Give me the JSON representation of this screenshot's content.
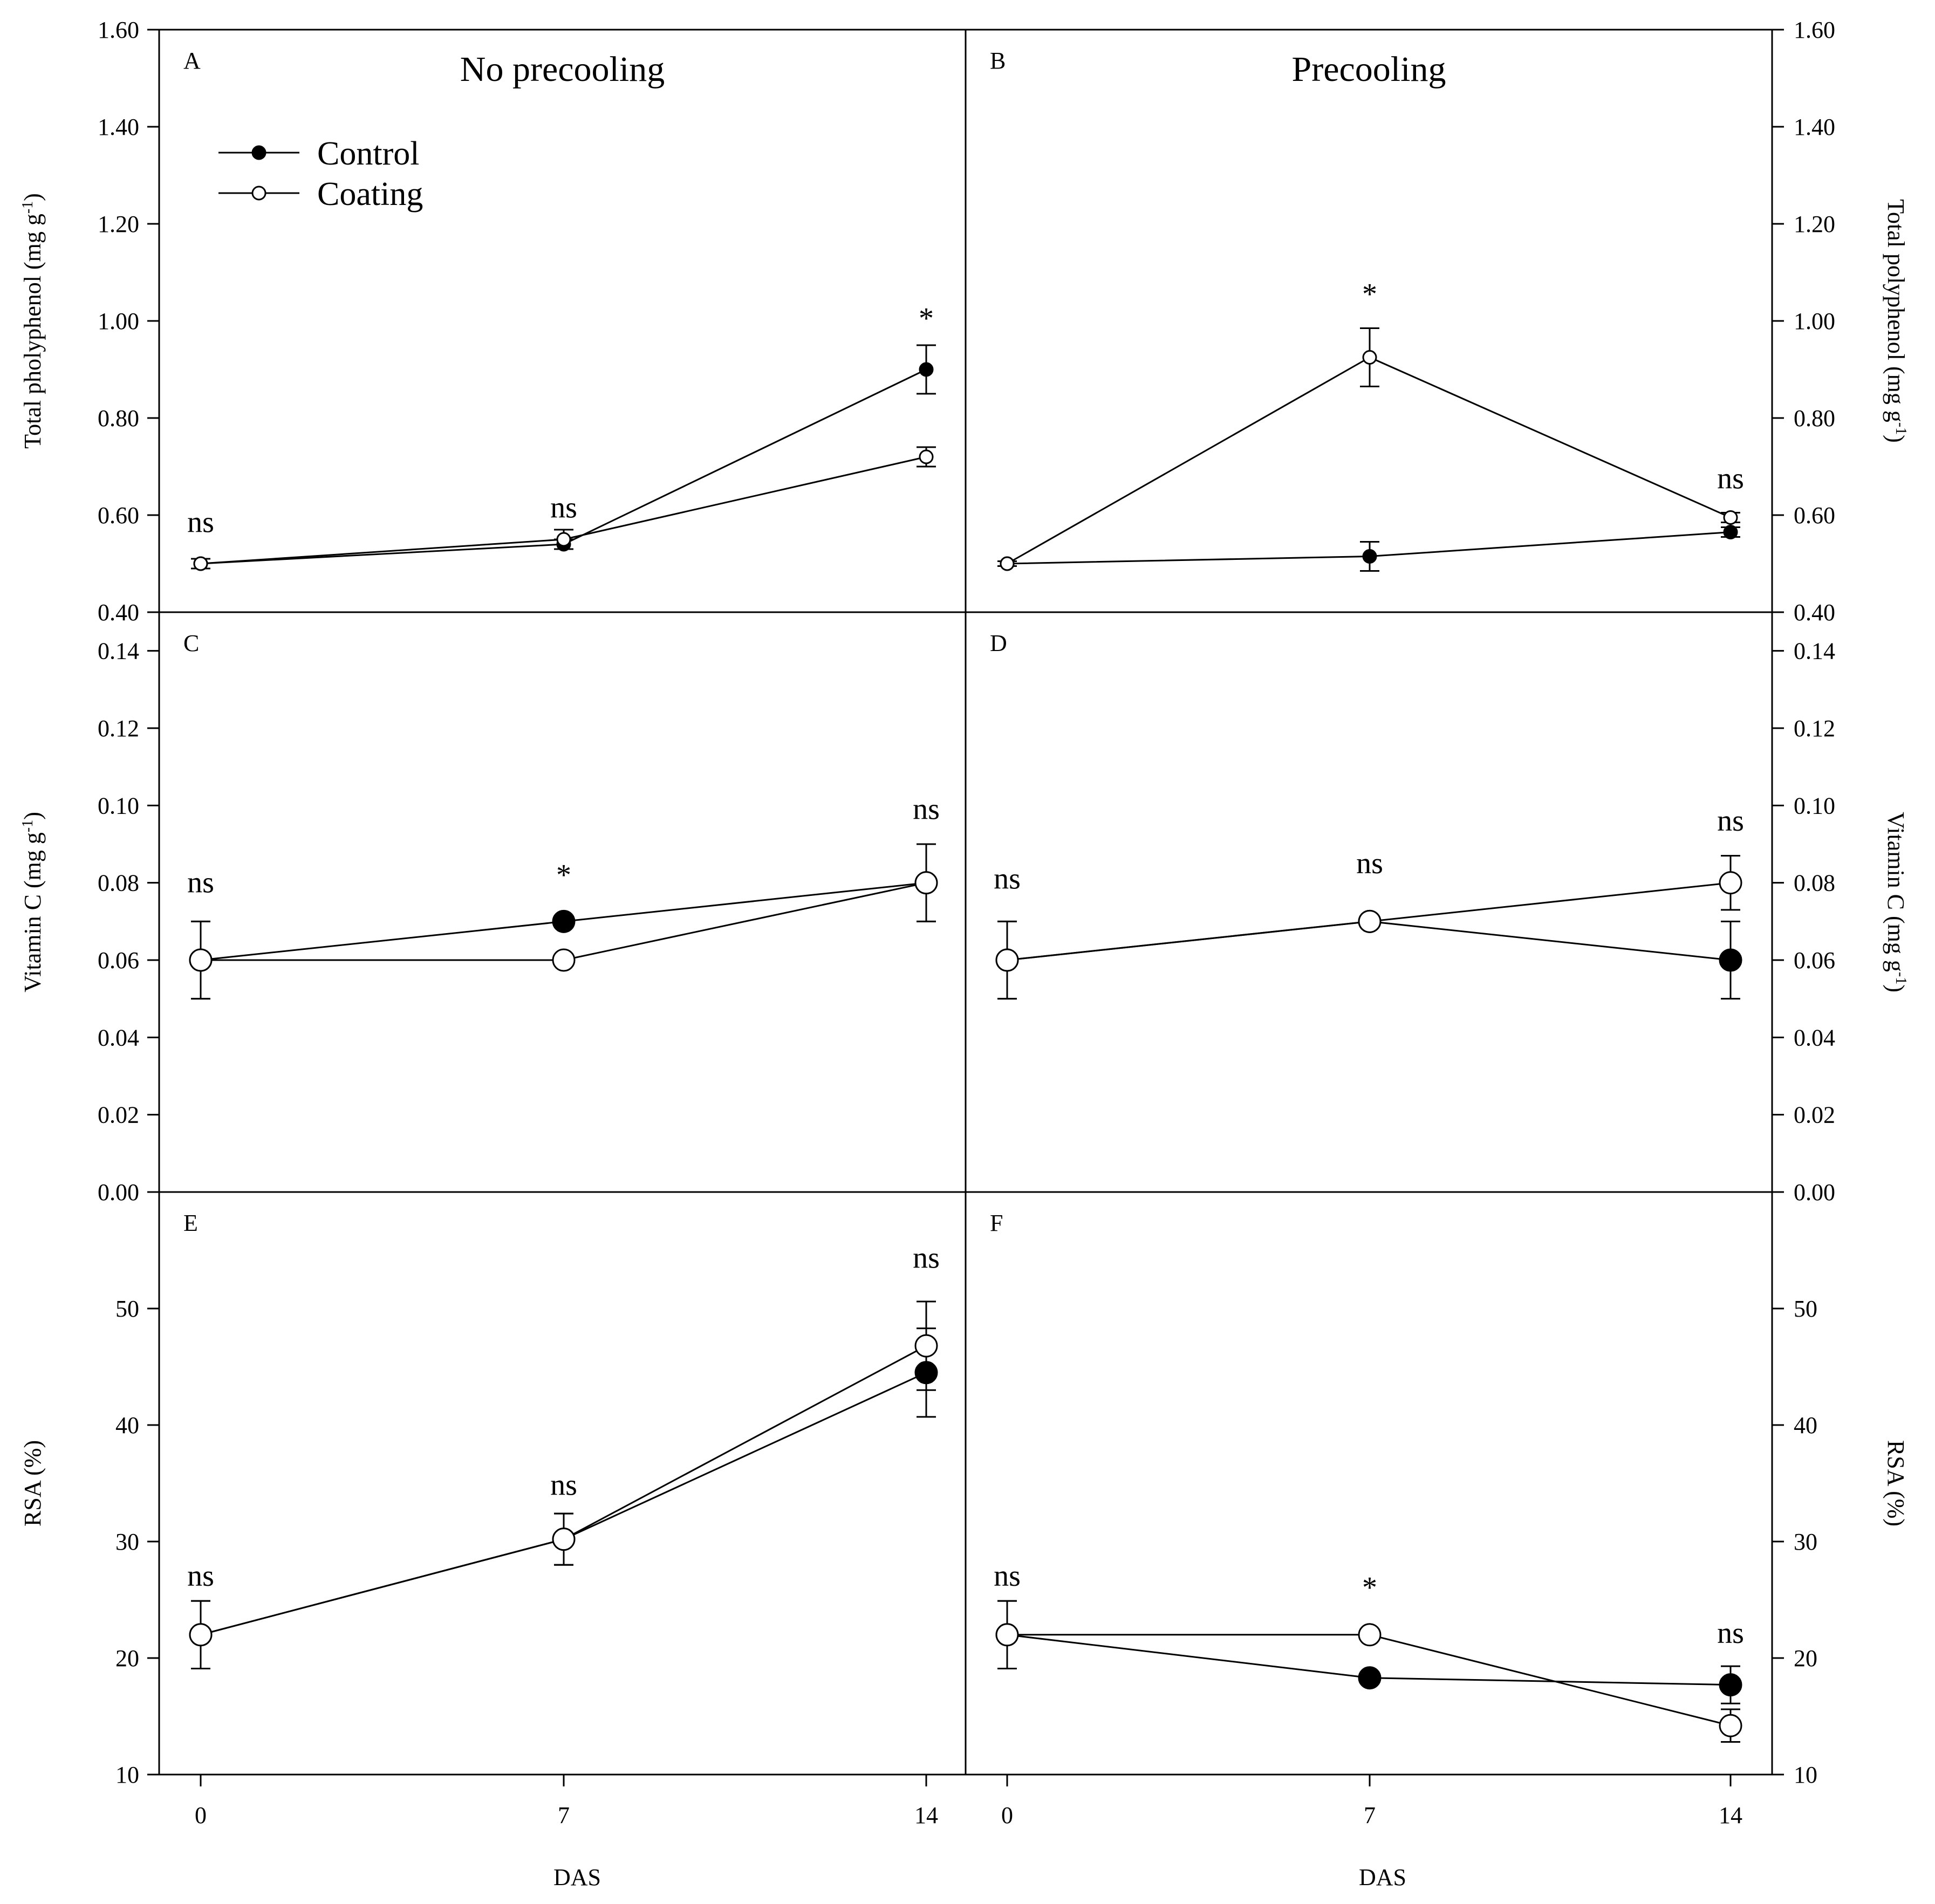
{
  "chart_data": {
    "type": "line",
    "x_label": "DAS",
    "x_ticks": [
      0,
      7,
      14
    ],
    "legend": [
      {
        "name": "Control",
        "marker": "filled"
      },
      {
        "name": "Coating",
        "marker": "open"
      }
    ],
    "column_titles": [
      "No precooling",
      "Precooling"
    ],
    "rows": [
      {
        "ylabel": "Total pholyphenol (mg g",
        "ylabel_sup": "-1",
        "ylabel_end": ")",
        "ylim": [
          0.4,
          1.6
        ],
        "yticks": [
          "0.40",
          "0.60",
          "0.80",
          "1.00",
          "1.20",
          "1.40",
          "1.60"
        ]
      },
      {
        "ylabel": "Vitamin C (mg g",
        "ylabel_sup": "-1",
        "ylabel_end": ")",
        "ylim": [
          0.0,
          0.15
        ],
        "yticks": [
          "0.00",
          "0.02",
          "0.04",
          "0.06",
          "0.08",
          "0.10",
          "0.12",
          "0.14"
        ]
      },
      {
        "ylabel": "RSA (%)",
        "ylabel_sup": "",
        "ylabel_end": "",
        "ylim": [
          10,
          60
        ],
        "yticks": [
          "10",
          "20",
          "30",
          "40",
          "50"
        ]
      }
    ],
    "right_rows": [
      {
        "ylabel": "Total polyphenol (mg g",
        "ylabel_sup": "-1",
        "ylabel_end": ")"
      },
      {
        "ylabel": "Vitamin C (mg g",
        "ylabel_sup": "-1",
        "ylabel_end": ")"
      },
      {
        "ylabel": "RSA (%)",
        "ylabel_sup": "",
        "ylabel_end": ""
      }
    ],
    "panels": [
      {
        "label": "A",
        "row": 0,
        "col": 0,
        "marker": "small",
        "title": "No precooling",
        "series": [
          {
            "name": "Control",
            "values": [
              0.5,
              0.54,
              0.9
            ],
            "err": [
              0.01,
              0.01,
              0.05
            ]
          },
          {
            "name": "Coating",
            "values": [
              0.5,
              0.55,
              0.72
            ],
            "err": [
              0.01,
              0.02,
              0.02
            ]
          }
        ],
        "annotations": [
          {
            "x": 0,
            "y": 0.565,
            "text": "ns"
          },
          {
            "x": 7,
            "y": 0.595,
            "text": "ns"
          },
          {
            "x": 14,
            "y": 0.985,
            "text": "*"
          }
        ]
      },
      {
        "label": "B",
        "row": 0,
        "col": 1,
        "marker": "small",
        "title": "Precooling",
        "series": [
          {
            "name": "Control",
            "values": [
              0.5,
              0.515,
              0.565
            ],
            "err": [
              0.005,
              0.03,
              0.01
            ]
          },
          {
            "name": "Coating",
            "values": [
              0.5,
              0.925,
              0.595
            ],
            "err": [
              0.005,
              0.06,
              0.01
            ]
          }
        ],
        "annotations": [
          {
            "x": 7,
            "y": 1.035,
            "text": "*"
          },
          {
            "x": 14,
            "y": 0.655,
            "text": "ns"
          }
        ]
      },
      {
        "label": "C",
        "row": 1,
        "col": 0,
        "marker": "large",
        "series": [
          {
            "name": "Control",
            "values": [
              0.06,
              0.07,
              0.08
            ],
            "err": [
              0.01,
              0.0,
              0.01
            ]
          },
          {
            "name": "Coating",
            "values": [
              0.06,
              0.06,
              0.08
            ],
            "err": [
              0.01,
              0.0,
              0.01
            ]
          }
        ],
        "annotations": [
          {
            "x": 0,
            "y": 0.0775,
            "text": "ns"
          },
          {
            "x": 7,
            "y": 0.0795,
            "text": "*"
          },
          {
            "x": 14,
            "y": 0.0965,
            "text": "ns"
          }
        ]
      },
      {
        "label": "D",
        "row": 1,
        "col": 1,
        "marker": "large",
        "series": [
          {
            "name": "Control",
            "values": [
              0.06,
              0.07,
              0.06
            ],
            "err": [
              0.01,
              0.0,
              0.01
            ]
          },
          {
            "name": "Coating",
            "values": [
              0.06,
              0.07,
              0.08
            ],
            "err": [
              0.01,
              0.0,
              0.007
            ]
          }
        ],
        "annotations": [
          {
            "x": 0,
            "y": 0.0785,
            "text": "ns"
          },
          {
            "x": 7,
            "y": 0.0825,
            "text": "ns"
          },
          {
            "x": 14,
            "y": 0.0935,
            "text": "ns"
          }
        ]
      },
      {
        "label": "E",
        "row": 2,
        "col": 0,
        "marker": "large",
        "series": [
          {
            "name": "Control",
            "values": [
              22.0,
              30.2,
              44.5
            ],
            "err": [
              2.9,
              2.2,
              3.8
            ]
          },
          {
            "name": "Coating",
            "values": [
              22.0,
              30.2,
              46.8
            ],
            "err": [
              2.9,
              2.2,
              3.8
            ]
          }
        ],
        "annotations": [
          {
            "x": 0,
            "y": 26.2,
            "text": "ns"
          },
          {
            "x": 7,
            "y": 34.0,
            "text": "ns"
          },
          {
            "x": 14,
            "y": 53.5,
            "text": "ns"
          }
        ]
      },
      {
        "label": "F",
        "row": 2,
        "col": 1,
        "marker": "large",
        "series": [
          {
            "name": "Control",
            "values": [
              22.0,
              18.3,
              17.7
            ],
            "err": [
              2.9,
              0.0,
              1.6
            ]
          },
          {
            "name": "Coating",
            "values": [
              22.0,
              22.0,
              14.2
            ],
            "err": [
              2.9,
              0.0,
              1.4
            ]
          }
        ],
        "annotations": [
          {
            "x": 0,
            "y": 26.2,
            "text": "ns"
          },
          {
            "x": 7,
            "y": 25.2,
            "text": "*"
          },
          {
            "x": 14,
            "y": 21.3,
            "text": "ns"
          }
        ]
      }
    ]
  }
}
